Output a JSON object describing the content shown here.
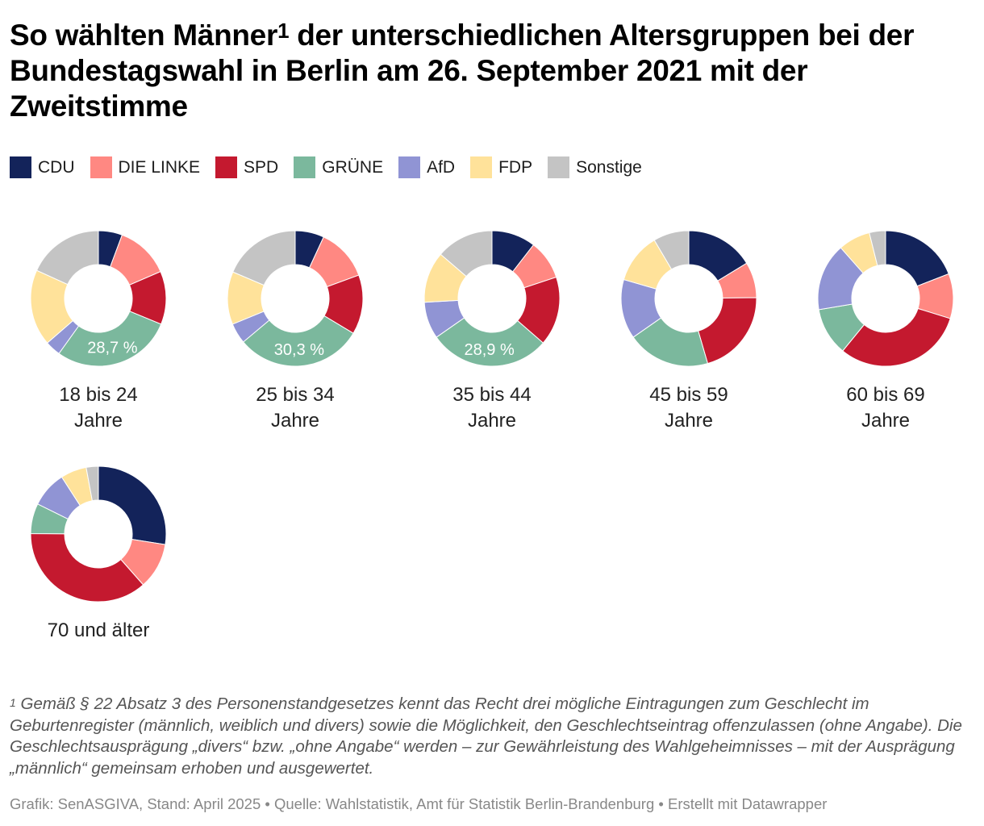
{
  "title": {
    "text_before": "So wählten Männer",
    "superscript": "1",
    "text_after": " der unterschiedlichen Altersgruppen bei der Bundestagswahl in Berlin am 26. September 2021 mit der Zweitstimme"
  },
  "legend": [
    {
      "label": "CDU",
      "color": "#13235a"
    },
    {
      "label": "DIE LINKE",
      "color": "#ff8882"
    },
    {
      "label": "SPD",
      "color": "#c4192f"
    },
    {
      "label": "GRÜNE",
      "color": "#7bb89d"
    },
    {
      "label": "AfD",
      "color": "#9094d4"
    },
    {
      "label": "FDP",
      "color": "#ffe29a"
    },
    {
      "label": "Sonstige",
      "color": "#c4c4c4"
    }
  ],
  "chart_data": {
    "type": "pie",
    "variant": "donut",
    "title": "So wählten Männer der unterschiedlichen Altersgruppen bei der Bundestagswahl in Berlin am 26. September 2021 mit der Zweitstimme",
    "categories": [
      "CDU",
      "DIE LINKE",
      "SPD",
      "GRÜNE",
      "AfD",
      "FDP",
      "Sonstige"
    ],
    "unit": "%",
    "charts": [
      {
        "label": "18 bis 24 Jahre",
        "label_lines": [
          "18 bis 24",
          "Jahre"
        ],
        "values": [
          5.7,
          12.8,
          12.7,
          28.7,
          3.7,
          18.2,
          18.2
        ],
        "annotation": {
          "category": "GRÜNE",
          "text": "28,7 %"
        }
      },
      {
        "label": "25 bis 34 Jahre",
        "label_lines": [
          "25 bis 34",
          "Jahre"
        ],
        "values": [
          6.9,
          12.5,
          14.2,
          30.3,
          4.9,
          12.6,
          18.6
        ],
        "annotation": {
          "category": "GRÜNE",
          "text": "30,3 %"
        }
      },
      {
        "label": "35 bis 44 Jahre",
        "label_lines": [
          "35 bis 44",
          "Jahre"
        ],
        "values": [
          10.5,
          9.4,
          16.5,
          28.9,
          8.8,
          12.2,
          13.7
        ],
        "annotation": {
          "category": "GRÜNE",
          "text": "28,9 %"
        }
      },
      {
        "label": "45 bis 59 Jahre",
        "label_lines": [
          "45 bis 59",
          "Jahre"
        ],
        "values": [
          16.3,
          8.5,
          20.7,
          19.8,
          14.2,
          12.0,
          8.5
        ],
        "annotation": null
      },
      {
        "label": "60 bis 69 Jahre",
        "label_lines": [
          "60 bis 69",
          "Jahre"
        ],
        "values": [
          18.7,
          10.5,
          30.5,
          11.2,
          15.8,
          7.5,
          3.8
        ],
        "annotation": null
      },
      {
        "label": "70 und älter",
        "label_lines": [
          "70 und älter"
        ],
        "values": [
          27.5,
          11.0,
          36.6,
          7.2,
          8.6,
          6.2,
          2.9
        ],
        "annotation": null
      }
    ]
  },
  "footnote": {
    "marker": "1",
    "text": " Gemäß § 22 Absatz 3 des Personenstandgesetzes kennt das Recht drei mögliche Eintragungen zum Geschlecht im Geburtenregister (männlich, weiblich und divers) sowie die Möglichkeit, den Geschlechtseintrag offenzulassen (ohne Angabe). Die Geschlechtsausprägung „divers“ bzw. „ohne Angabe“ werden – zur Gewährleistung des Wahlgeheimnisses – mit der Ausprägung „männlich“ gemeinsam erhoben und ausgewertet."
  },
  "credits": "Grafik: SenASGIVA, Stand: April 2025 • Quelle: Wahlstatistik, Amt für Statistik Berlin-Brandenburg • Erstellt mit Datawrapper"
}
